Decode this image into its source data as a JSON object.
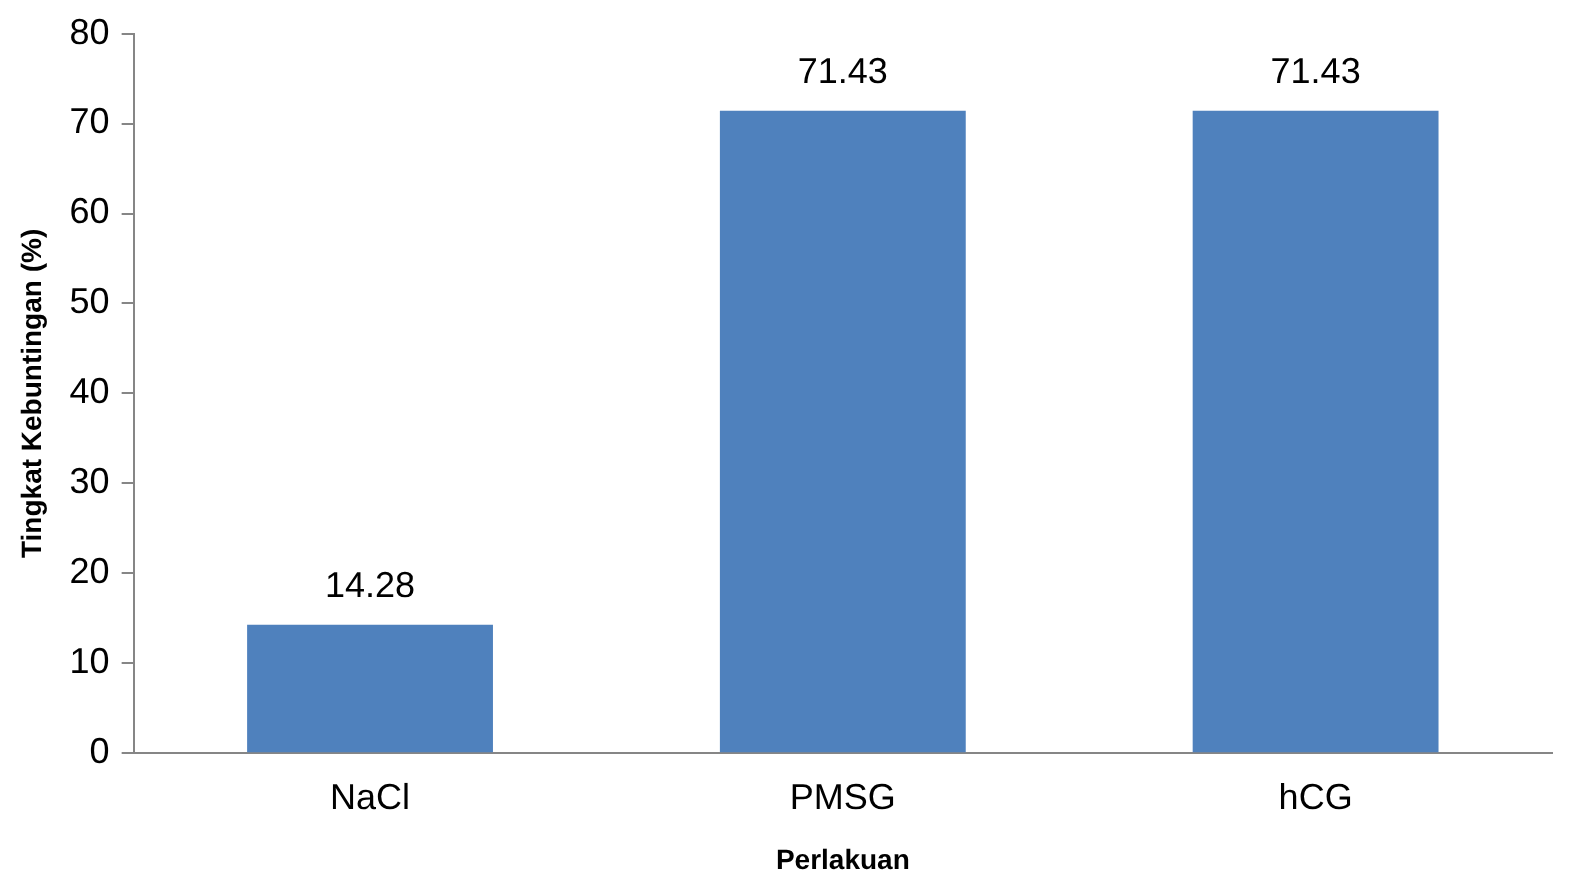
{
  "chart_data": {
    "type": "bar",
    "xlabel": "Perlakuan",
    "ylabel": "Tingkat Kebuntingan (%)",
    "categories": [
      "NaCl",
      "PMSG",
      "hCG"
    ],
    "values": [
      14.28,
      71.43,
      71.43
    ],
    "color": "#4f81bd",
    "ylim": [
      0,
      80
    ],
    "yticks": [
      0,
      10,
      20,
      30,
      40,
      50,
      60,
      70,
      80
    ],
    "grid": false,
    "data_labels": true
  }
}
